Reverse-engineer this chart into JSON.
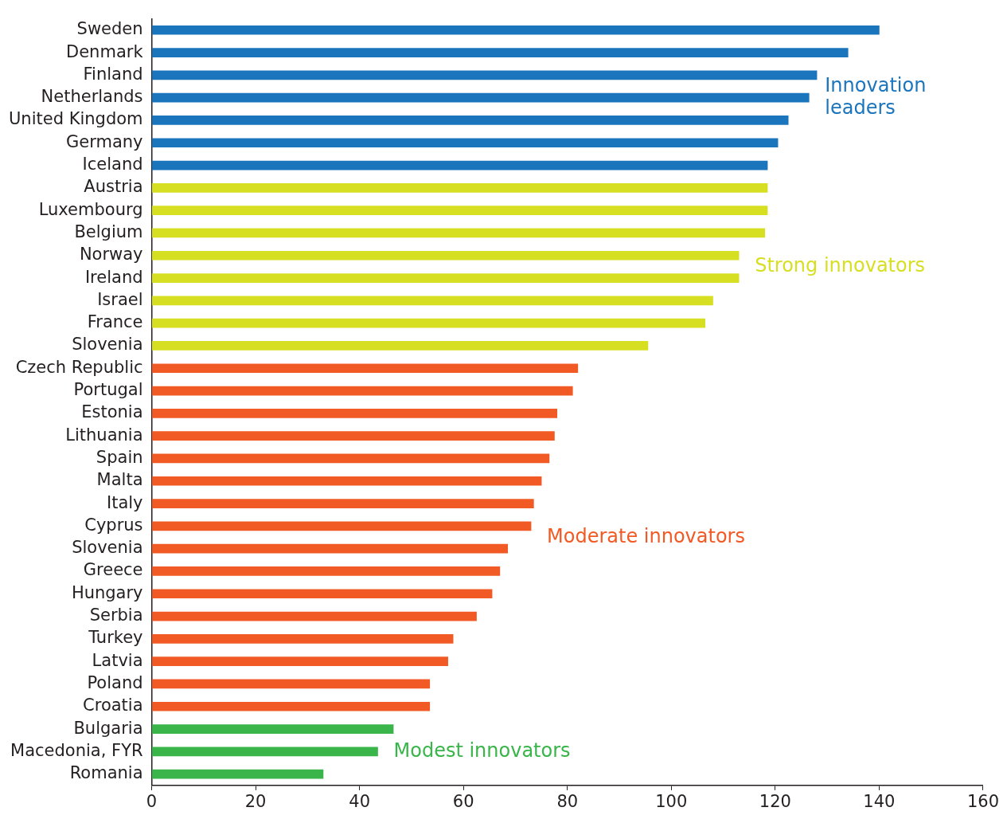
{
  "chart_data": {
    "type": "bar",
    "orientation": "horizontal",
    "categories": [
      "Sweden",
      "Denmark",
      "Finland",
      "Netherlands",
      "United Kingdom",
      "Germany",
      "Iceland",
      "Austria",
      "Luxembourg",
      "Belgium",
      "Norway",
      "Ireland",
      "Israel",
      "France",
      "Slovenia",
      "Czech Republic",
      "Portugal",
      "Estonia",
      "Lithuania",
      "Spain",
      "Malta",
      "Italy",
      "Cyprus",
      "Slovenia",
      "Greece",
      "Hungary",
      "Serbia",
      "Turkey",
      "Latvia",
      "Poland",
      "Croatia",
      "Bulgaria",
      "Macedonia, FYR",
      "Romania"
    ],
    "series": [
      {
        "name": "Innovation leaders",
        "color": "#1b75bc",
        "values": [
          140,
          134,
          128,
          126.5,
          122.5,
          120.5,
          118.5,
          null,
          null,
          null,
          null,
          null,
          null,
          null,
          null,
          null,
          null,
          null,
          null,
          null,
          null,
          null,
          null,
          null,
          null,
          null,
          null,
          null,
          null,
          null,
          null,
          null,
          null,
          null
        ]
      },
      {
        "name": "Strong innovators",
        "color": "#d7df23",
        "values": [
          null,
          null,
          null,
          null,
          null,
          null,
          null,
          118.5,
          118.5,
          118,
          113,
          113,
          108,
          106.5,
          95.5,
          null,
          null,
          null,
          null,
          null,
          null,
          null,
          null,
          null,
          null,
          null,
          null,
          null,
          null,
          null,
          null,
          null,
          null,
          null
        ]
      },
      {
        "name": "Moderate innovators",
        "color": "#f15a24",
        "values": [
          null,
          null,
          null,
          null,
          null,
          null,
          null,
          null,
          null,
          null,
          null,
          null,
          null,
          null,
          null,
          82,
          81,
          78,
          77.5,
          76.5,
          75,
          73.5,
          73,
          68.5,
          67,
          65.5,
          62.5,
          58,
          57,
          53.5,
          53.5,
          null,
          null,
          null
        ]
      },
      {
        "name": "Modest innovators",
        "color": "#39b54a",
        "values": [
          null,
          null,
          null,
          null,
          null,
          null,
          null,
          null,
          null,
          null,
          null,
          null,
          null,
          null,
          null,
          null,
          null,
          null,
          null,
          null,
          null,
          null,
          null,
          null,
          null,
          null,
          null,
          null,
          null,
          null,
          null,
          46.5,
          43.5,
          33
        ]
      }
    ],
    "xlim": [
      0,
      160
    ],
    "xticks": [
      0,
      20,
      40,
      60,
      80,
      100,
      120,
      140,
      160
    ],
    "grid": false,
    "legend": false
  }
}
